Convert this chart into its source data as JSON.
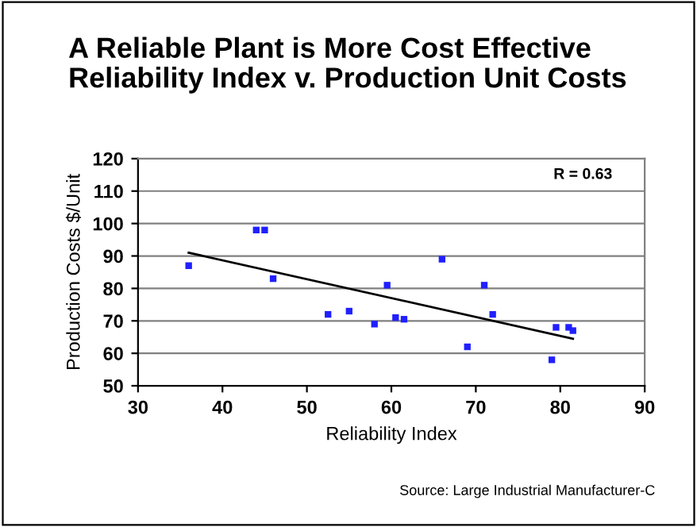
{
  "chart_data": {
    "type": "scatter",
    "title": "A Reliable Plant is More Cost Effective\nReliability Index v. Production Unit Costs",
    "xlabel": "Reliability Index",
    "ylabel": "Production Costs $/Unit",
    "series": [
      {
        "color": "#2020ff",
        "marker": "square",
        "x": [
          36,
          44,
          45,
          46,
          52.5,
          55,
          58,
          59.5,
          60.5,
          61.5,
          66,
          69,
          71,
          72,
          79,
          79.5,
          81,
          81.5
        ],
        "values": [
          87,
          98,
          98,
          83,
          72,
          73,
          69,
          81,
          71,
          70.5,
          89,
          62,
          81,
          72,
          58,
          68,
          68,
          67
        ]
      },
      {
        "type": "line",
        "color": "#000000",
        "marker": "none",
        "x": [
          36,
          81.5
        ],
        "values": [
          91,
          64.5
        ]
      }
    ],
    "xlim": [
      30,
      90
    ],
    "xticks": [
      30,
      40,
      50,
      60,
      70,
      80,
      90
    ],
    "ylim": [
      50,
      120
    ],
    "yticks": [
      50,
      60,
      70,
      80,
      90,
      100,
      110,
      120
    ],
    "grid": "y",
    "legend": false,
    "annotations": [
      "R = 0.63",
      "Source: Large Industrial Manufacturer-C"
    ]
  }
}
